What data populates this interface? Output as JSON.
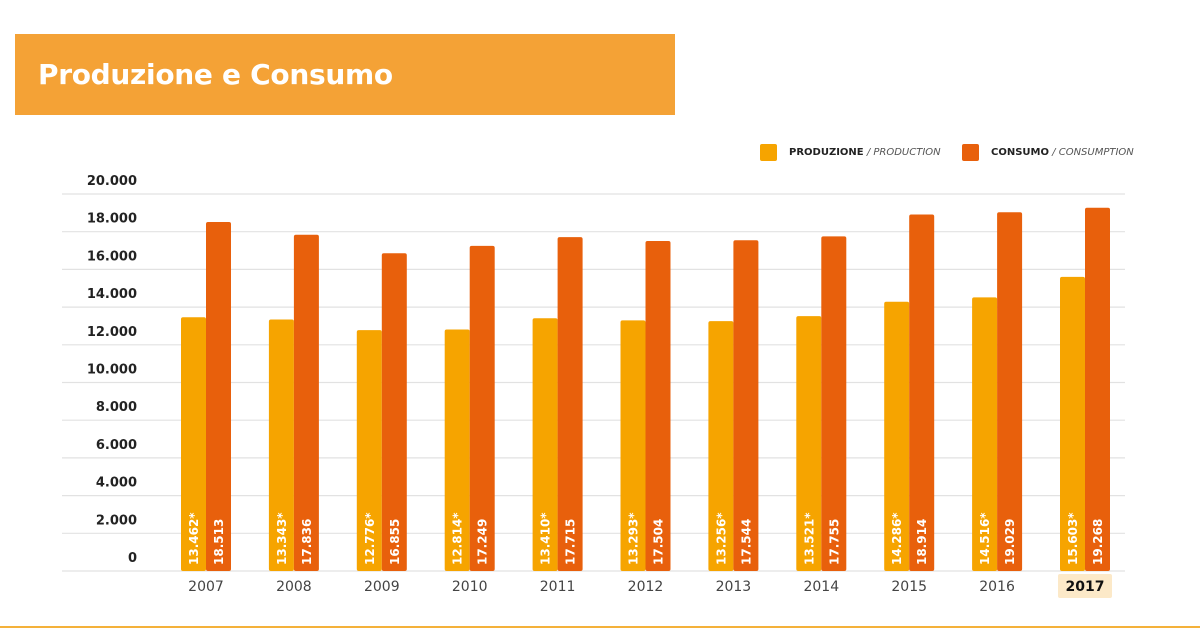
{
  "header": {
    "title": "Produzione e Consumo"
  },
  "colors": {
    "header": "#F4A236",
    "production": "#F6A400",
    "consumption": "#E8600C",
    "highlight": "#FCE9C8"
  },
  "chart_data": {
    "type": "bar",
    "title": "Produzione e Consumo",
    "categories": [
      "2007",
      "2008",
      "2009",
      "2010",
      "2011",
      "2012",
      "2013",
      "2014",
      "2015",
      "2016",
      "2017"
    ],
    "highlighted_category": "2017",
    "series": [
      {
        "name": "PRODUZIONE",
        "name_en": "/ PRODUCTION",
        "values": [
          13462,
          13343,
          12776,
          12814,
          13410,
          13293,
          13256,
          13521,
          14286,
          14516,
          15603
        ],
        "labels": [
          "13.462*",
          "13.343*",
          "12.776*",
          "12.814*",
          "13.410*",
          "13.293*",
          "13.256*",
          "13.521*",
          "14.286*",
          "14.516*",
          "15.603*"
        ]
      },
      {
        "name": "CONSUMO",
        "name_en": "/ CONSUMPTION",
        "values": [
          18513,
          17836,
          16855,
          17249,
          17715,
          17504,
          17544,
          17755,
          18914,
          19029,
          19268
        ],
        "labels": [
          "18.513",
          "17.836",
          "16.855",
          "17.249",
          "17.715",
          "17.504",
          "17.544",
          "17.755",
          "18.914",
          "19.029",
          "19.268"
        ]
      }
    ],
    "ylim": [
      0,
      20000
    ],
    "yticks": [
      0,
      2000,
      4000,
      6000,
      8000,
      10000,
      12000,
      14000,
      16000,
      18000,
      20000
    ],
    "ytick_labels": [
      "0",
      "2.000",
      "4.000",
      "6.000",
      "8.000",
      "10.000",
      "12.000",
      "14.000",
      "16.000",
      "18.000",
      "20.000"
    ],
    "grid": true,
    "legend": "top-right",
    "xlabel": "",
    "ylabel": ""
  }
}
